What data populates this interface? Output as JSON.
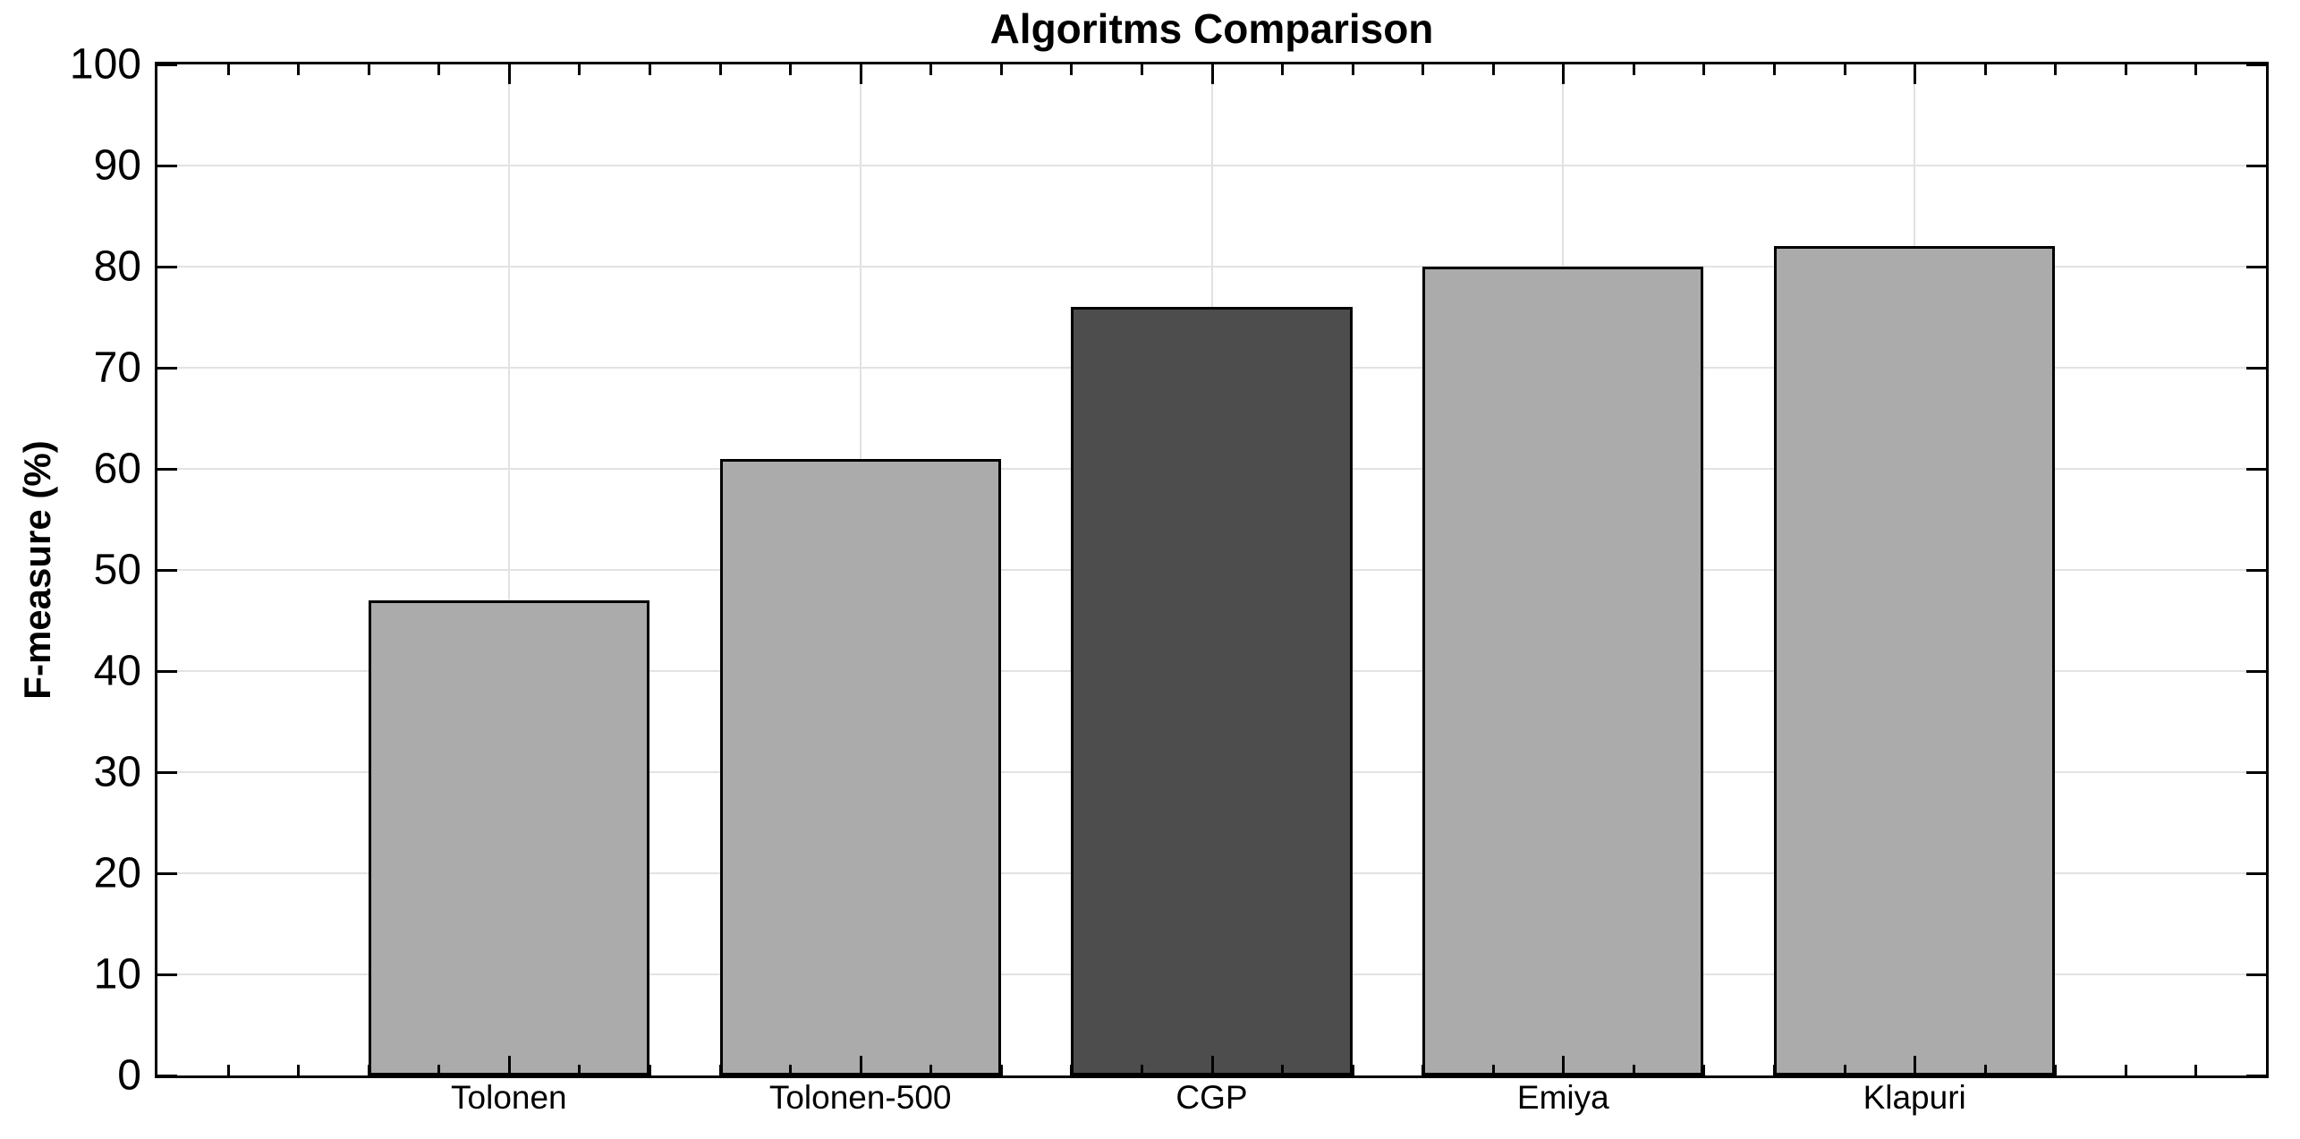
{
  "chart_data": {
    "type": "bar",
    "title": "Algoritms Comparison",
    "ylabel": "F-measure (%)",
    "xlabel": "",
    "categories": [
      "Tolonen",
      "Tolonen-500",
      "CGP",
      "Emiya",
      "Klapuri"
    ],
    "values": [
      47,
      61,
      76,
      80,
      82
    ],
    "bar_colors": [
      "#ababab",
      "#ababab",
      "#4d4d4d",
      "#ababab",
      "#ababab"
    ],
    "bar_edge_color": "#000000",
    "ylim": [
      0,
      100
    ],
    "yticks": [
      0,
      10,
      20,
      30,
      40,
      50,
      60,
      70,
      80,
      90,
      100
    ],
    "xlim": [
      0,
      6
    ],
    "x_positions": [
      1,
      2,
      3,
      4,
      5
    ],
    "bar_width": 0.8,
    "x_minor_tick_step": 0.2,
    "grid": true,
    "grid_color": "#e2e2e2",
    "axis_color": "#000000",
    "background_color": "#ffffff",
    "legend": null
  }
}
